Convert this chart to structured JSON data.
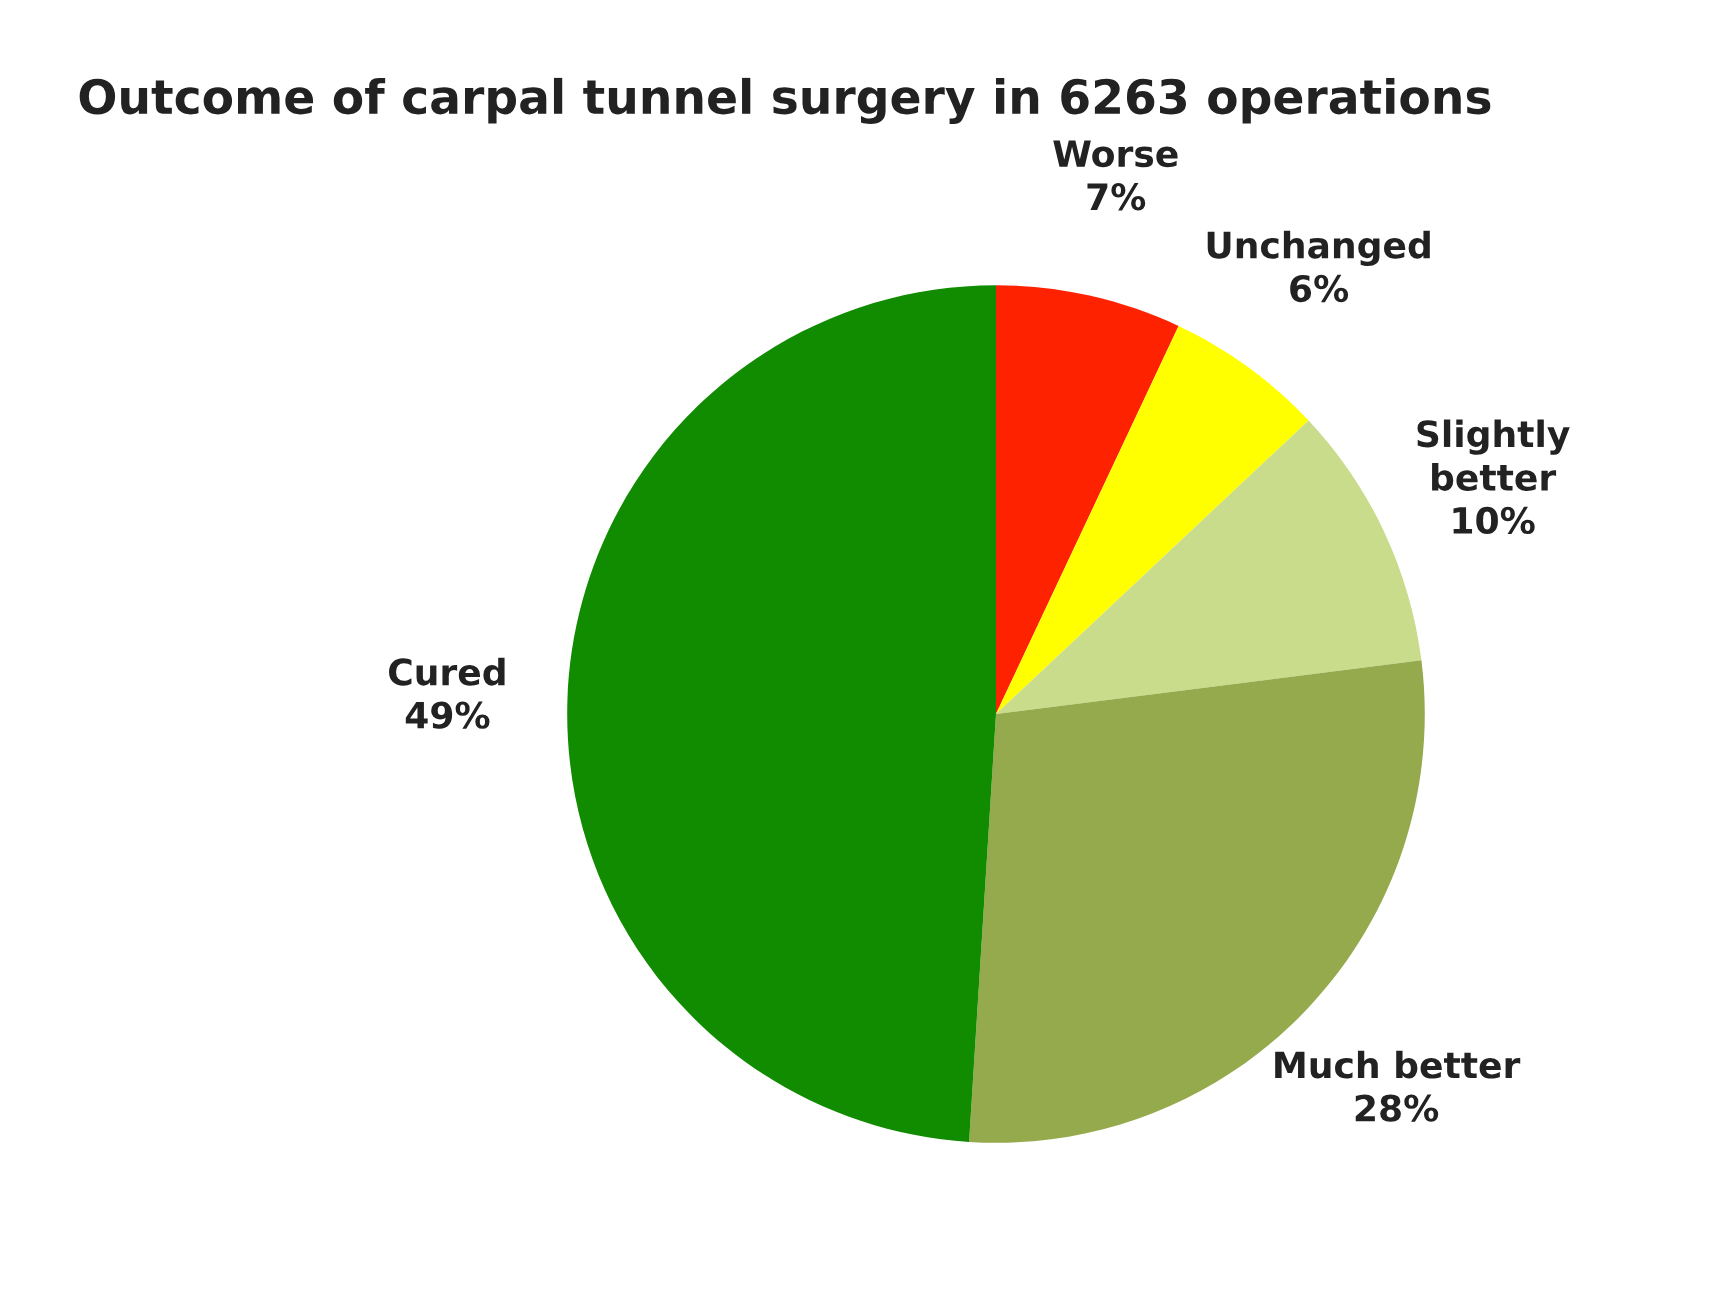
{
  "chart_data": {
    "type": "pie",
    "title": "Outcome of carpal tunnel surgery in 6263 operations",
    "categories": [
      "Worse",
      "Unchanged",
      "Slightly better",
      "Much better",
      "Cured"
    ],
    "values": [
      7,
      6,
      10,
      28,
      49
    ],
    "colors": [
      "#ff2200",
      "#ffff00",
      "#c8dc8c",
      "#94aa4c",
      "#118c00"
    ],
    "value_labels": [
      "7%",
      "6%",
      "10%",
      "28%",
      "49%"
    ],
    "legend": false
  }
}
